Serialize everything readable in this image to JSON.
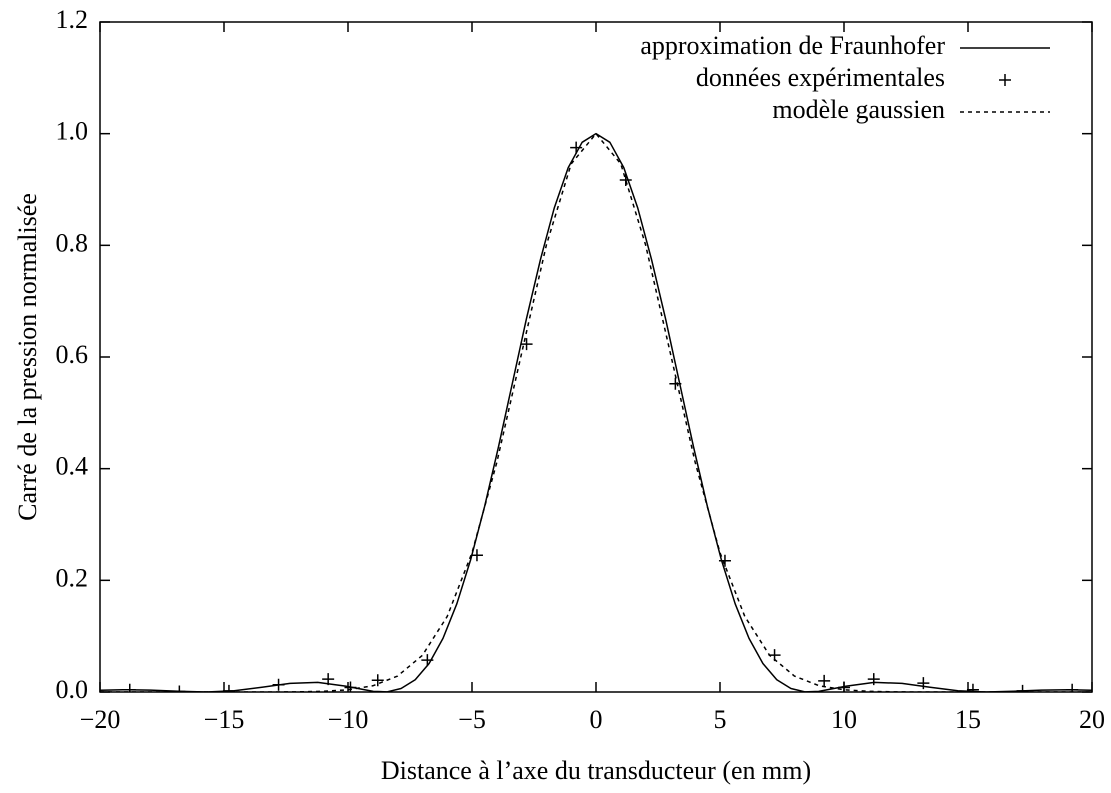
{
  "chart_data": {
    "type": "line",
    "xlabel": "Distance à l’axe du transducteur (en mm)",
    "ylabel": "Carré de la pression normalisée",
    "xlim": [
      -20,
      20
    ],
    "ylim": [
      0,
      1.2
    ],
    "xticks": [
      {
        "value": -20,
        "label": "−20"
      },
      {
        "value": -15,
        "label": "−15"
      },
      {
        "value": -10,
        "label": "−10"
      },
      {
        "value": -5,
        "label": "−5"
      },
      0,
      5,
      10,
      15,
      20
    ],
    "yticks": [
      {
        "value": 0,
        "label": "0.0"
      },
      {
        "value": 0.2,
        "label": "0.2"
      },
      {
        "value": 0.4,
        "label": "0.4"
      },
      {
        "value": 0.6,
        "label": "0.6"
      },
      {
        "value": 0.8,
        "label": "0.8"
      },
      {
        "value": 1,
        "label": "1.0"
      },
      {
        "value": 1.2,
        "label": "1.2"
      }
    ],
    "grid": false,
    "legend": "upper right",
    "series": [
      {
        "name": "approximation de Fraunhofer",
        "style": "solid",
        "color": "#000000",
        "x": [
          -20.2,
          -19.08,
          -17.96,
          -16.83,
          -15.71,
          -14.59,
          -13.47,
          -12.34,
          -11.22,
          -10.1,
          -8.98,
          -8.42,
          -7.86,
          -7.29,
          -6.73,
          -6.17,
          -5.61,
          -5.05,
          -4.49,
          -3.93,
          -3.37,
          -2.81,
          -2.24,
          -1.68,
          -1.12,
          -0.56,
          0,
          0.56,
          1.12,
          1.68,
          2.24,
          2.81,
          3.37,
          3.93,
          4.49,
          5.05,
          5.61,
          6.17,
          6.73,
          7.29,
          7.86,
          8.42,
          8.98,
          10.1,
          11.22,
          12.34,
          13.47,
          14.59,
          15.71,
          16.83,
          17.96,
          19.08,
          20.2
        ],
        "values": [
          0.003,
          0.0041,
          0.0034,
          0.0013,
          0,
          0.0022,
          0.0085,
          0.0154,
          0.0172,
          0.0105,
          0.0011,
          0.0003,
          0.0062,
          0.022,
          0.0511,
          0.096,
          0.1582,
          0.2376,
          0.3326,
          0.4396,
          0.5534,
          0.6675,
          0.7746,
          0.8674,
          0.9391,
          0.9845,
          1,
          0.9845,
          0.9391,
          0.8674,
          0.7746,
          0.6675,
          0.5534,
          0.4396,
          0.3326,
          0.2376,
          0.1582,
          0.096,
          0.0511,
          0.022,
          0.0062,
          0.0003,
          0.0011,
          0.0105,
          0.0172,
          0.0154,
          0.0085,
          0.0022,
          0,
          0.0013,
          0.0034,
          0.0041,
          0.003
        ]
      },
      {
        "name": "données expérimentales",
        "style": "points",
        "color": "#000000",
        "x": [
          -18.8,
          -16.8,
          -14.8,
          -12.8,
          -10.8,
          -9.9,
          -8.8,
          -6.8,
          -4.8,
          -2.8,
          -0.8,
          1.2,
          3.2,
          5.2,
          7.2,
          9.2,
          10.0,
          11.2,
          13.2,
          15.2,
          17.2,
          19.2
        ],
        "values": [
          0.004,
          0.001,
          0.002,
          0.013,
          0.023,
          0.008,
          0.021,
          0.057,
          0.245,
          0.623,
          0.975,
          0.917,
          0.552,
          0.235,
          0.066,
          0.02,
          0.008,
          0.023,
          0.016,
          0.004,
          0.002,
          0.004
        ]
      },
      {
        "name": "modèle gaussien",
        "style": "dashed",
        "color": "#000000",
        "x": [
          -20,
          -19,
          -18,
          -17,
          -16,
          -15,
          -14,
          -13,
          -12,
          -11,
          -10,
          -9,
          -8,
          -7,
          -6,
          -5,
          -4,
          -3,
          -2,
          -1,
          0,
          1,
          2,
          3,
          4,
          5,
          6,
          7,
          8,
          9,
          10,
          11,
          12,
          13,
          14,
          15,
          16,
          17,
          18,
          19,
          20
        ],
        "values": [
          0,
          0,
          0,
          0,
          0,
          0,
          0,
          0,
          0.0003,
          0.0012,
          0.0039,
          0.0111,
          0.0286,
          0.0657,
          0.1353,
          0.2494,
          0.4111,
          0.6065,
          0.8007,
          0.9459,
          1,
          0.9459,
          0.8007,
          0.6065,
          0.4111,
          0.2494,
          0.1353,
          0.0657,
          0.0286,
          0.0111,
          0.0039,
          0.0012,
          0.0003,
          0,
          0,
          0,
          0,
          0,
          0,
          0,
          0
        ]
      }
    ]
  }
}
